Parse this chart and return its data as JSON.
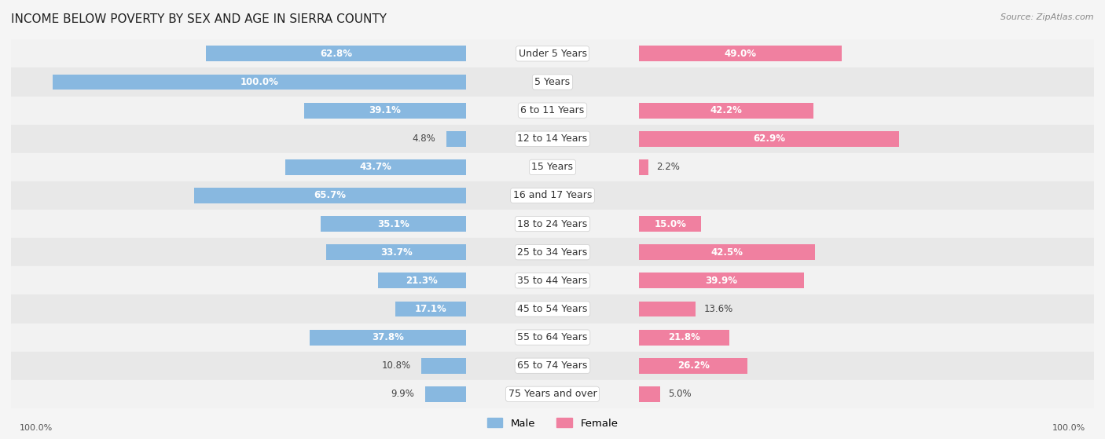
{
  "title": "INCOME BELOW POVERTY BY SEX AND AGE IN SIERRA COUNTY",
  "source": "Source: ZipAtlas.com",
  "categories": [
    "Under 5 Years",
    "5 Years",
    "6 to 11 Years",
    "12 to 14 Years",
    "15 Years",
    "16 and 17 Years",
    "18 to 24 Years",
    "25 to 34 Years",
    "35 to 44 Years",
    "45 to 54 Years",
    "55 to 64 Years",
    "65 to 74 Years",
    "75 Years and over"
  ],
  "male_values": [
    62.8,
    100.0,
    39.1,
    4.8,
    43.7,
    65.7,
    35.1,
    33.7,
    21.3,
    17.1,
    37.8,
    10.8,
    9.9
  ],
  "female_values": [
    49.0,
    0.0,
    42.2,
    62.9,
    2.2,
    0.0,
    15.0,
    42.5,
    39.9,
    13.6,
    21.8,
    26.2,
    5.0
  ],
  "male_color": "#88b8e0",
  "female_color": "#f080a0",
  "male_label": "Male",
  "female_label": "Female",
  "bg_light": "#f2f2f2",
  "bg_dark": "#e8e8e8",
  "row_colors": [
    "#f2f2f2",
    "#e8e8e8"
  ],
  "title_fontsize": 11,
  "label_fontsize": 9,
  "value_fontsize": 8.5,
  "bar_height": 0.55
}
